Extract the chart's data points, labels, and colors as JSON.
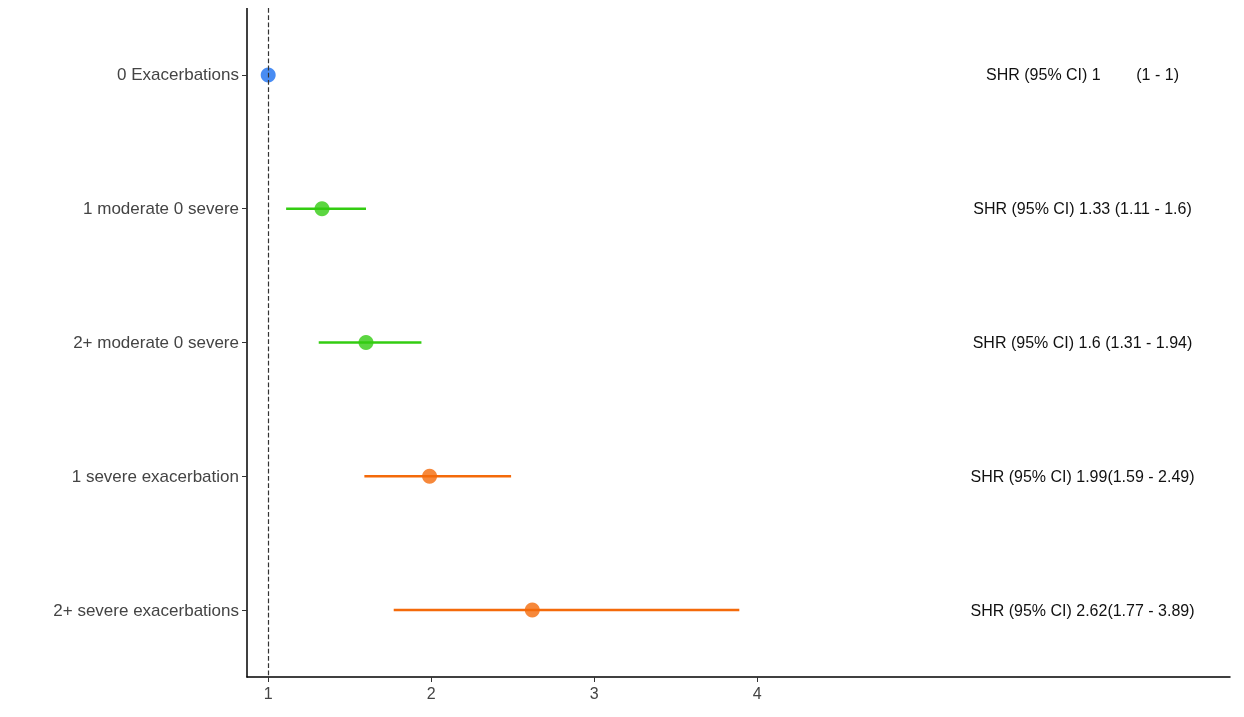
{
  "chart_data": {
    "type": "scatter",
    "categories": [
      "0 Exacerbations",
      "1 moderate 0 severe",
      "2+ moderate 0 severe",
      "1 severe exacerbation",
      "2+ severe exacerbations"
    ],
    "values": [
      1,
      1.33,
      1.6,
      1.99,
      2.62
    ],
    "errors": [
      [
        1,
        1
      ],
      [
        1.11,
        1.6
      ],
      [
        1.31,
        1.94
      ],
      [
        1.59,
        2.49
      ],
      [
        1.77,
        3.89
      ]
    ],
    "colors": [
      "#1a6ff0",
      "#33cc11",
      "#33cc11",
      "#f46a0a",
      "#f46a0a"
    ],
    "annotations": [
      "SHR (95% CI) 1        (1 - 1)",
      "SHR (95% CI) 1.33 (1.11 - 1.6)",
      "SHR (95% CI) 1.6 (1.31 - 1.94)",
      "SHR (95% CI) 1.99(1.59 - 2.49)",
      "SHR (95% CI) 2.62(1.77 - 3.89)"
    ],
    "orientation": "horizontal",
    "xlim": [
      0.87,
      6.9
    ],
    "xticks": [
      1,
      2,
      3,
      4
    ],
    "ref_lines": [
      {
        "axis": "x",
        "value": 1,
        "line_style": "dashed",
        "color": "#333333"
      }
    ],
    "marker": "circle",
    "grid": false
  }
}
